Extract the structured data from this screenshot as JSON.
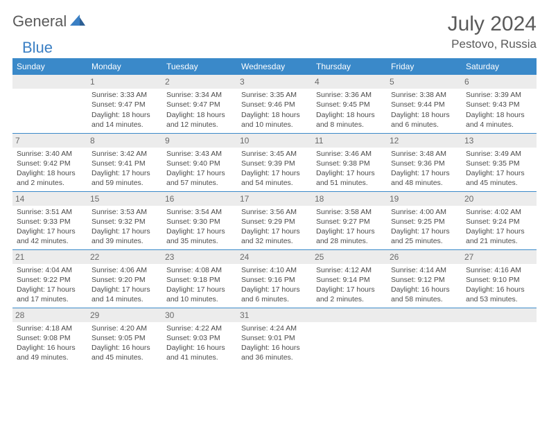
{
  "brand": {
    "part1": "General",
    "part2": "Blue"
  },
  "title": "July 2024",
  "location": "Pestovo, Russia",
  "colors": {
    "header_bg": "#3a89c9",
    "header_text": "#ffffff",
    "divider": "#3a89c9",
    "daynum_bg": "#ececec",
    "text": "#4a4a4a",
    "brand_blue": "#3a7fc4"
  },
  "weekdays": [
    "Sunday",
    "Monday",
    "Tuesday",
    "Wednesday",
    "Thursday",
    "Friday",
    "Saturday"
  ],
  "weeks": [
    [
      null,
      {
        "d": "1",
        "sr": "Sunrise: 3:33 AM",
        "ss": "Sunset: 9:47 PM",
        "dl": "Daylight: 18 hours and 14 minutes."
      },
      {
        "d": "2",
        "sr": "Sunrise: 3:34 AM",
        "ss": "Sunset: 9:47 PM",
        "dl": "Daylight: 18 hours and 12 minutes."
      },
      {
        "d": "3",
        "sr": "Sunrise: 3:35 AM",
        "ss": "Sunset: 9:46 PM",
        "dl": "Daylight: 18 hours and 10 minutes."
      },
      {
        "d": "4",
        "sr": "Sunrise: 3:36 AM",
        "ss": "Sunset: 9:45 PM",
        "dl": "Daylight: 18 hours and 8 minutes."
      },
      {
        "d": "5",
        "sr": "Sunrise: 3:38 AM",
        "ss": "Sunset: 9:44 PM",
        "dl": "Daylight: 18 hours and 6 minutes."
      },
      {
        "d": "6",
        "sr": "Sunrise: 3:39 AM",
        "ss": "Sunset: 9:43 PM",
        "dl": "Daylight: 18 hours and 4 minutes."
      }
    ],
    [
      {
        "d": "7",
        "sr": "Sunrise: 3:40 AM",
        "ss": "Sunset: 9:42 PM",
        "dl": "Daylight: 18 hours and 2 minutes."
      },
      {
        "d": "8",
        "sr": "Sunrise: 3:42 AM",
        "ss": "Sunset: 9:41 PM",
        "dl": "Daylight: 17 hours and 59 minutes."
      },
      {
        "d": "9",
        "sr": "Sunrise: 3:43 AM",
        "ss": "Sunset: 9:40 PM",
        "dl": "Daylight: 17 hours and 57 minutes."
      },
      {
        "d": "10",
        "sr": "Sunrise: 3:45 AM",
        "ss": "Sunset: 9:39 PM",
        "dl": "Daylight: 17 hours and 54 minutes."
      },
      {
        "d": "11",
        "sr": "Sunrise: 3:46 AM",
        "ss": "Sunset: 9:38 PM",
        "dl": "Daylight: 17 hours and 51 minutes."
      },
      {
        "d": "12",
        "sr": "Sunrise: 3:48 AM",
        "ss": "Sunset: 9:36 PM",
        "dl": "Daylight: 17 hours and 48 minutes."
      },
      {
        "d": "13",
        "sr": "Sunrise: 3:49 AM",
        "ss": "Sunset: 9:35 PM",
        "dl": "Daylight: 17 hours and 45 minutes."
      }
    ],
    [
      {
        "d": "14",
        "sr": "Sunrise: 3:51 AM",
        "ss": "Sunset: 9:33 PM",
        "dl": "Daylight: 17 hours and 42 minutes."
      },
      {
        "d": "15",
        "sr": "Sunrise: 3:53 AM",
        "ss": "Sunset: 9:32 PM",
        "dl": "Daylight: 17 hours and 39 minutes."
      },
      {
        "d": "16",
        "sr": "Sunrise: 3:54 AM",
        "ss": "Sunset: 9:30 PM",
        "dl": "Daylight: 17 hours and 35 minutes."
      },
      {
        "d": "17",
        "sr": "Sunrise: 3:56 AM",
        "ss": "Sunset: 9:29 PM",
        "dl": "Daylight: 17 hours and 32 minutes."
      },
      {
        "d": "18",
        "sr": "Sunrise: 3:58 AM",
        "ss": "Sunset: 9:27 PM",
        "dl": "Daylight: 17 hours and 28 minutes."
      },
      {
        "d": "19",
        "sr": "Sunrise: 4:00 AM",
        "ss": "Sunset: 9:25 PM",
        "dl": "Daylight: 17 hours and 25 minutes."
      },
      {
        "d": "20",
        "sr": "Sunrise: 4:02 AM",
        "ss": "Sunset: 9:24 PM",
        "dl": "Daylight: 17 hours and 21 minutes."
      }
    ],
    [
      {
        "d": "21",
        "sr": "Sunrise: 4:04 AM",
        "ss": "Sunset: 9:22 PM",
        "dl": "Daylight: 17 hours and 17 minutes."
      },
      {
        "d": "22",
        "sr": "Sunrise: 4:06 AM",
        "ss": "Sunset: 9:20 PM",
        "dl": "Daylight: 17 hours and 14 minutes."
      },
      {
        "d": "23",
        "sr": "Sunrise: 4:08 AM",
        "ss": "Sunset: 9:18 PM",
        "dl": "Daylight: 17 hours and 10 minutes."
      },
      {
        "d": "24",
        "sr": "Sunrise: 4:10 AM",
        "ss": "Sunset: 9:16 PM",
        "dl": "Daylight: 17 hours and 6 minutes."
      },
      {
        "d": "25",
        "sr": "Sunrise: 4:12 AM",
        "ss": "Sunset: 9:14 PM",
        "dl": "Daylight: 17 hours and 2 minutes."
      },
      {
        "d": "26",
        "sr": "Sunrise: 4:14 AM",
        "ss": "Sunset: 9:12 PM",
        "dl": "Daylight: 16 hours and 58 minutes."
      },
      {
        "d": "27",
        "sr": "Sunrise: 4:16 AM",
        "ss": "Sunset: 9:10 PM",
        "dl": "Daylight: 16 hours and 53 minutes."
      }
    ],
    [
      {
        "d": "28",
        "sr": "Sunrise: 4:18 AM",
        "ss": "Sunset: 9:08 PM",
        "dl": "Daylight: 16 hours and 49 minutes."
      },
      {
        "d": "29",
        "sr": "Sunrise: 4:20 AM",
        "ss": "Sunset: 9:05 PM",
        "dl": "Daylight: 16 hours and 45 minutes."
      },
      {
        "d": "30",
        "sr": "Sunrise: 4:22 AM",
        "ss": "Sunset: 9:03 PM",
        "dl": "Daylight: 16 hours and 41 minutes."
      },
      {
        "d": "31",
        "sr": "Sunrise: 4:24 AM",
        "ss": "Sunset: 9:01 PM",
        "dl": "Daylight: 16 hours and 36 minutes."
      },
      null,
      null,
      null
    ]
  ]
}
